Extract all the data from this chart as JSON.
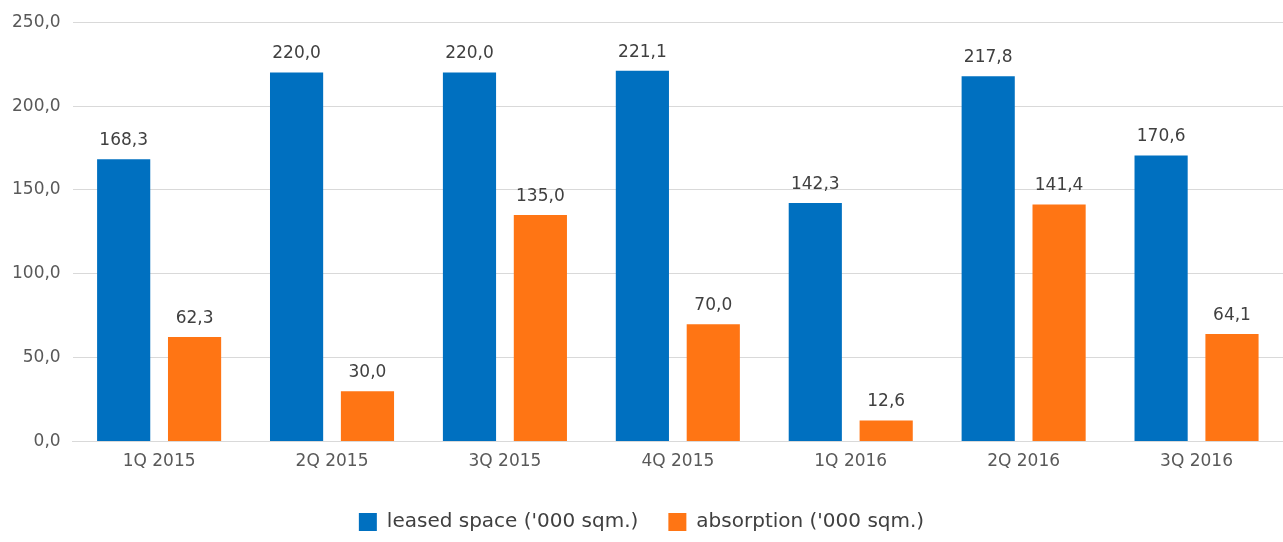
{
  "chart_data": {
    "type": "bar",
    "categories": [
      "1Q 2015",
      "2Q 2015",
      "3Q 2015",
      "4Q 2015",
      "1Q 2016",
      "2Q 2016",
      "3Q 2016"
    ],
    "series": [
      {
        "name": "leased space ('000 sqm.)",
        "color": "#0070c0",
        "values": [
          168.3,
          220.0,
          220.0,
          221.1,
          142.3,
          217.8,
          170.6
        ],
        "value_labels": [
          "168,3",
          "220,0",
          "220,0",
          "221,1",
          "142,3",
          "217,8",
          "170,6"
        ]
      },
      {
        "name": "absorption ('000 sqm.)",
        "color": "#ff7514",
        "values": [
          62.3,
          30.0,
          135.0,
          70.0,
          12.6,
          141.4,
          64.1
        ],
        "value_labels": [
          "62,3",
          "30,0",
          "135,0",
          "70,0",
          "12,6",
          "141,4",
          "64,1"
        ]
      }
    ],
    "ylim": [
      0,
      250
    ],
    "yticks": [
      {
        "value": 0,
        "label": "0,0"
      },
      {
        "value": 50,
        "label": "50,0"
      },
      {
        "value": 100,
        "label": "100,0"
      },
      {
        "value": 150,
        "label": "150,0"
      },
      {
        "value": 200,
        "label": "200,0"
      },
      {
        "value": 250,
        "label": "250,0"
      }
    ],
    "grid": "y",
    "legend": "bottom"
  }
}
